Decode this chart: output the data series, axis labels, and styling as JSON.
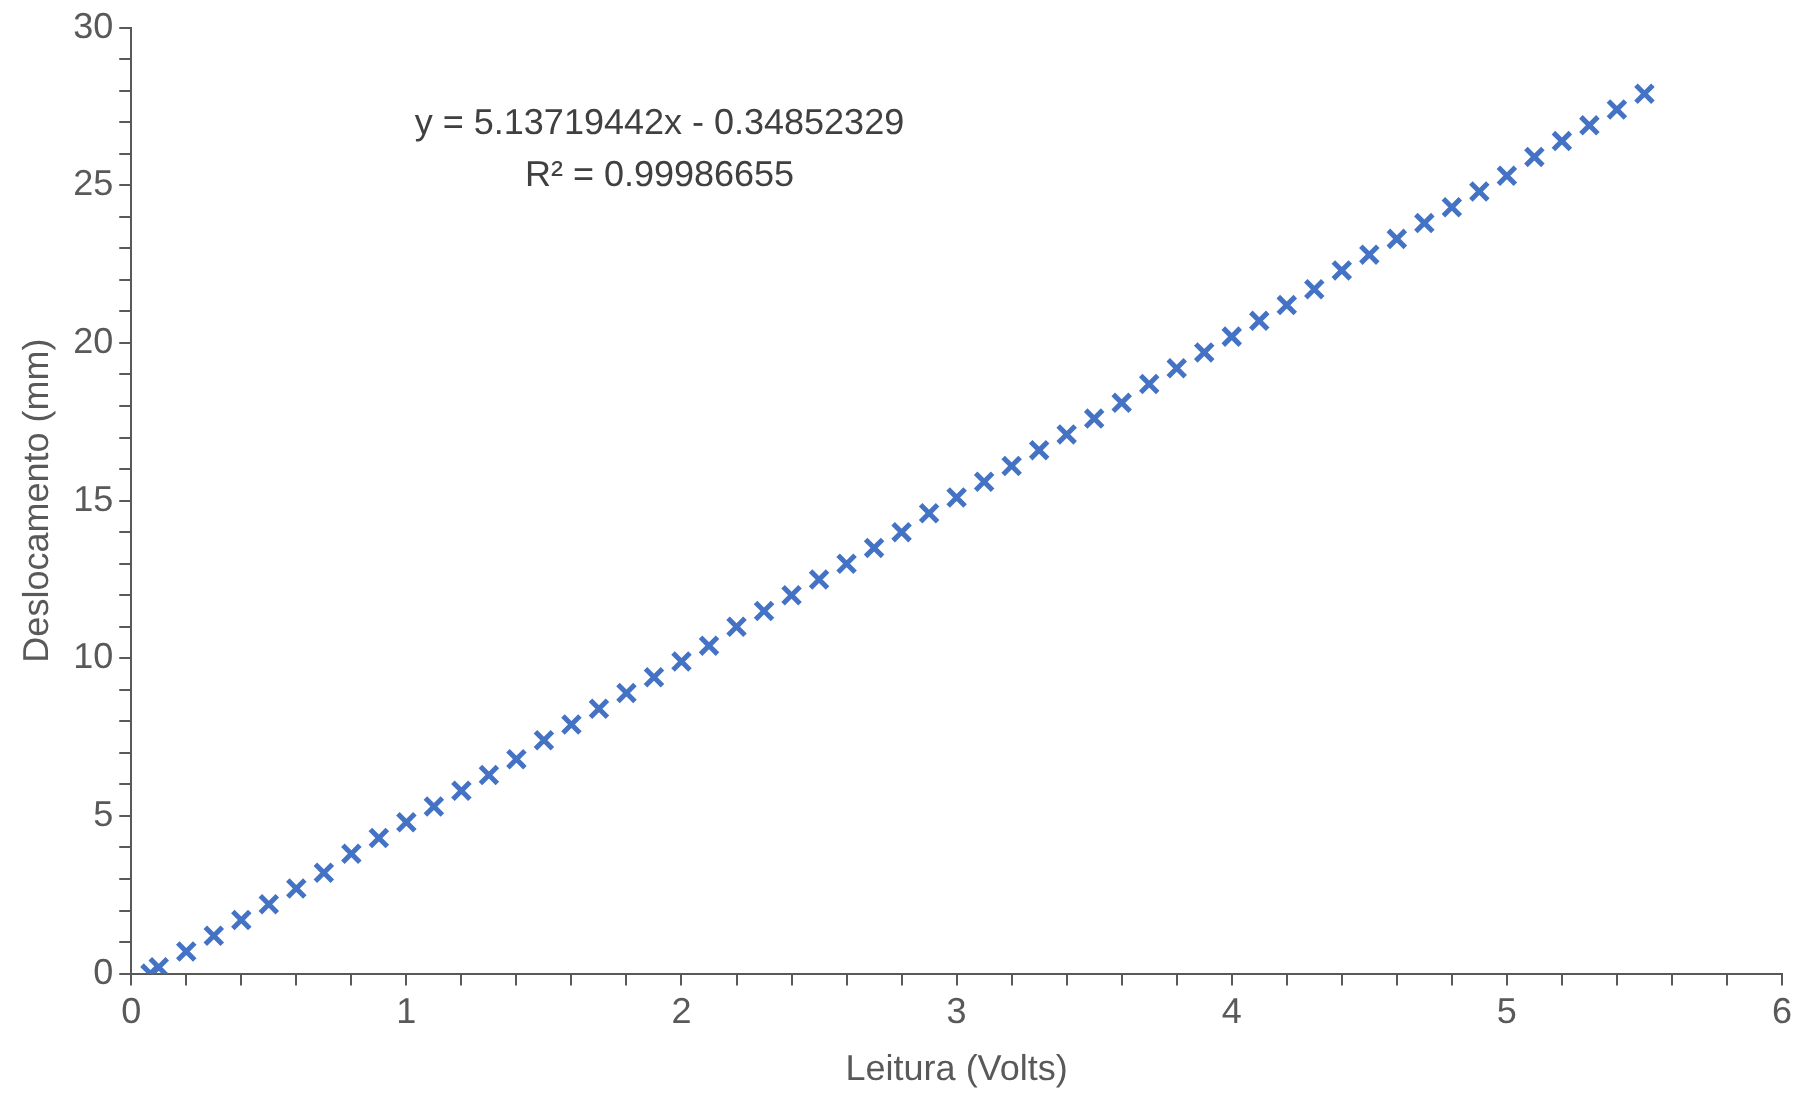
{
  "chart_data": {
    "type": "scatter",
    "xlabel": "Leitura (Volts)",
    "ylabel": "Deslocamento (mm)",
    "annotations": [
      "y = 5.13719442x - 0.34852329",
      "R² = 0.99986655"
    ],
    "marker": "cross",
    "grid": false,
    "legend": false,
    "xlim": [
      0,
      6
    ],
    "ylim": [
      0,
      30
    ],
    "xticks": [
      0,
      {
        "value": 0.2,
        "label": null
      },
      {
        "value": 0.4,
        "label": null
      },
      {
        "value": 0.6,
        "label": null
      },
      {
        "value": 0.8,
        "label": null
      },
      1,
      {
        "value": 1.2,
        "label": null
      },
      {
        "value": 1.4,
        "label": null
      },
      {
        "value": 1.6,
        "label": null
      },
      {
        "value": 1.8,
        "label": null
      },
      2,
      {
        "value": 2.2,
        "label": null
      },
      {
        "value": 2.4,
        "label": null
      },
      {
        "value": 2.6,
        "label": null
      },
      {
        "value": 2.8,
        "label": null
      },
      3,
      {
        "value": 3.2,
        "label": null
      },
      {
        "value": 3.4,
        "label": null
      },
      {
        "value": 3.6,
        "label": null
      },
      {
        "value": 3.8,
        "label": null
      },
      4,
      {
        "value": 4.2,
        "label": null
      },
      {
        "value": 4.4,
        "label": null
      },
      {
        "value": 4.6,
        "label": null
      },
      {
        "value": 4.8,
        "label": null
      },
      5,
      {
        "value": 5.2,
        "label": null
      },
      {
        "value": 5.4,
        "label": null
      },
      {
        "value": 5.6,
        "label": null
      },
      {
        "value": 5.8,
        "label": null
      },
      6
    ],
    "yticks": [
      0,
      {
        "value": 1,
        "label": null
      },
      {
        "value": 2,
        "label": null
      },
      {
        "value": 3,
        "label": null
      },
      {
        "value": 4,
        "label": null
      },
      5,
      {
        "value": 6,
        "label": null
      },
      {
        "value": 7,
        "label": null
      },
      {
        "value": 8,
        "label": null
      },
      {
        "value": 9,
        "label": null
      },
      10,
      {
        "value": 11,
        "label": null
      },
      {
        "value": 12,
        "label": null
      },
      {
        "value": 13,
        "label": null
      },
      {
        "value": 14,
        "label": null
      },
      15,
      {
        "value": 16,
        "label": null
      },
      {
        "value": 17,
        "label": null
      },
      {
        "value": 18,
        "label": null
      },
      {
        "value": 19,
        "label": null
      },
      20,
      {
        "value": 21,
        "label": null
      },
      {
        "value": 22,
        "label": null
      },
      {
        "value": 23,
        "label": null
      },
      {
        "value": 24,
        "label": null
      },
      25,
      {
        "value": 26,
        "label": null
      },
      {
        "value": 27,
        "label": null
      },
      {
        "value": 28,
        "label": null
      },
      {
        "value": 29,
        "label": null
      },
      30
    ],
    "series": [
      {
        "color": "#4472c4",
        "x": [
          0.07,
          0.1,
          0.2,
          0.3,
          0.4,
          0.5,
          0.6,
          0.7,
          0.8,
          0.9,
          1.0,
          1.1,
          1.2,
          1.3,
          1.4,
          1.5,
          1.6,
          1.7,
          1.8,
          1.9,
          2.0,
          2.1,
          2.2,
          2.3,
          2.4,
          2.5,
          2.6,
          2.7,
          2.8,
          2.9,
          3.0,
          3.1,
          3.2,
          3.3,
          3.4,
          3.5,
          3.6,
          3.7,
          3.8,
          3.9,
          4.0,
          4.1,
          4.2,
          4.3,
          4.4,
          4.5,
          4.6,
          4.7,
          4.8,
          4.9,
          5.0,
          5.1,
          5.2,
          5.3,
          5.4,
          5.5
        ],
        "values": [
          0.0,
          0.2,
          0.7,
          1.2,
          1.7,
          2.2,
          2.7,
          3.2,
          3.8,
          4.3,
          4.8,
          5.3,
          5.8,
          6.3,
          6.8,
          7.4,
          7.9,
          8.4,
          8.9,
          9.4,
          9.9,
          10.4,
          11.0,
          11.5,
          12.0,
          12.5,
          13.0,
          13.5,
          14.0,
          14.6,
          15.1,
          15.6,
          16.1,
          16.6,
          17.1,
          17.6,
          18.1,
          18.7,
          19.2,
          19.7,
          20.2,
          20.7,
          21.2,
          21.7,
          22.3,
          22.8,
          23.3,
          23.8,
          24.3,
          24.8,
          25.3,
          25.9,
          26.4,
          26.9,
          27.4,
          27.9
        ]
      }
    ]
  }
}
